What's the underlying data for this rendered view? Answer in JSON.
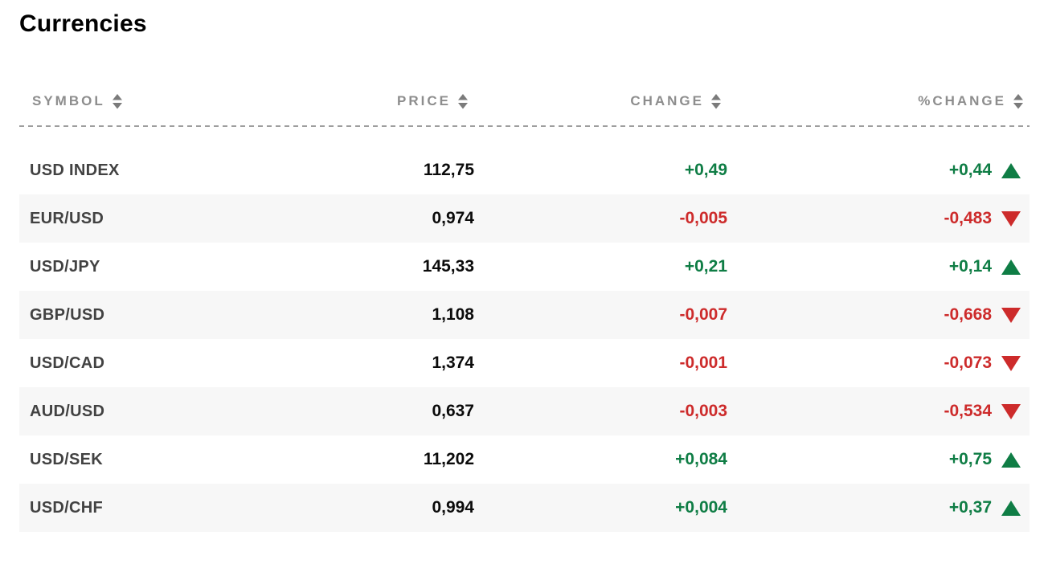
{
  "page": {
    "title": "Currencies"
  },
  "table": {
    "columns": [
      {
        "key": "symbol",
        "label": "SYMBOL"
      },
      {
        "key": "price",
        "label": "PRICE"
      },
      {
        "key": "change",
        "label": "CHANGE"
      },
      {
        "key": "pct_change",
        "label": "%CHANGE"
      }
    ],
    "rows": [
      {
        "symbol": "USD INDEX",
        "price": "112,75",
        "change": "+0,49",
        "pct_change": "+0,44",
        "direction": "up"
      },
      {
        "symbol": "EUR/USD",
        "price": "0,974",
        "change": "-0,005",
        "pct_change": "-0,483",
        "direction": "down"
      },
      {
        "symbol": "USD/JPY",
        "price": "145,33",
        "change": "+0,21",
        "pct_change": "+0,14",
        "direction": "up"
      },
      {
        "symbol": "GBP/USD",
        "price": "1,108",
        "change": "-0,007",
        "pct_change": "-0,668",
        "direction": "down"
      },
      {
        "symbol": "USD/CAD",
        "price": "1,374",
        "change": "-0,001",
        "pct_change": "-0,073",
        "direction": "down"
      },
      {
        "symbol": "AUD/USD",
        "price": "0,637",
        "change": "-0,003",
        "pct_change": "-0,534",
        "direction": "down"
      },
      {
        "symbol": "USD/SEK",
        "price": "11,202",
        "change": "+0,084",
        "pct_change": "+0,75",
        "direction": "up"
      },
      {
        "symbol": "USD/CHF",
        "price": "0,994",
        "change": "+0,004",
        "pct_change": "+0,37",
        "direction": "up"
      }
    ]
  },
  "icons": {
    "sort": "sort-arrows",
    "up": "triangle-up",
    "down": "triangle-down"
  },
  "colors": {
    "positive": "#0f7d45",
    "negative": "#cd2b2b",
    "header_text": "#8d8d8d",
    "symbol_text": "#424242",
    "row_stripe": "#f7f7f7",
    "separator": "#9e9e9e"
  }
}
